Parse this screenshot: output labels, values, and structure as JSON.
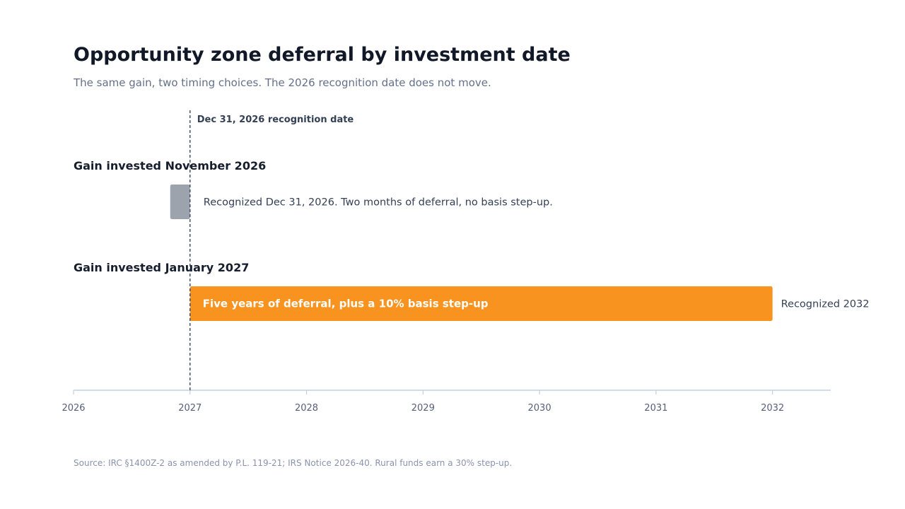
{
  "title": "Opportunity zone deferral by investment date",
  "subtitle": "The same gain, two timing choices. The 2026 recognition date does not move.",
  "source": "Source: IRC §1400Z-2 as amended by P.L. 119-21; IRS Notice 2026-40. Rural funds earn a 30% step-up.",
  "colors": {
    "november_bar": "#9ca3ad",
    "january_bar": "#f7931e",
    "axis": "#c3cfe0",
    "reference_line": "#3a4663",
    "group_label": "#161d2d",
    "annotation": "#344055",
    "tick_label": "#555f77"
  },
  "chart_data": {
    "type": "bar",
    "orientation": "horizontal",
    "x_axis": {
      "range": [
        2026,
        2032.5
      ],
      "ticks": [
        2026,
        2027,
        2028,
        2029,
        2030,
        2031,
        2032
      ],
      "tick_labels": [
        "2026",
        "2027",
        "2028",
        "2029",
        "2030",
        "2031",
        "2032"
      ]
    },
    "reference_line": {
      "x": 2027,
      "label": "Dec 31, 2026 recognition date"
    },
    "series": [
      {
        "label": "Gain invested November 2026",
        "start": 2026.83,
        "end": 2027,
        "color": "#9ca3ad",
        "annotation": "Recognized Dec 31, 2026. Two months of deferral, no basis step-up.",
        "annotation_position": "right"
      },
      {
        "label": "Gain invested January 2027",
        "start": 2027,
        "end": 2032,
        "color": "#f7931e",
        "inner_label": "Five years of deferral, plus a 10% basis step-up",
        "annotation": "Recognized 2032",
        "annotation_position": "right"
      }
    ],
    "grid": false,
    "legend": "none"
  }
}
